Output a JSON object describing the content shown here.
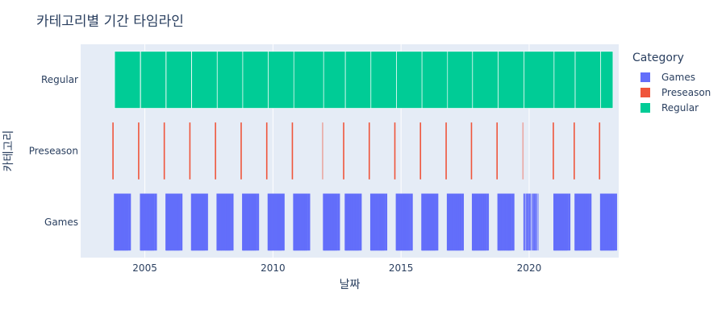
{
  "chart_data": {
    "type": "timeline",
    "title": "카테고리별 기간 타임라인",
    "xlabel": "날짜",
    "ylabel": "카테고리",
    "xlim": [
      "2002-07-01",
      "2023-07-01"
    ],
    "x_ticks": [
      "2005",
      "2010",
      "2015",
      "2020"
    ],
    "categories": [
      "Regular",
      "Preseason",
      "Games"
    ],
    "legend_title": "Category",
    "legend_position": "right",
    "grid": true,
    "series": [
      {
        "name": "Games",
        "color": "#636efa"
      },
      {
        "name": "Preseason",
        "color": "#ef553b"
      },
      {
        "name": "Regular",
        "color": "#00cc96"
      }
    ],
    "regular_periods": [
      [
        "2003-10-28",
        "2004-10-28"
      ],
      [
        "2004-11-02",
        "2005-10-28"
      ],
      [
        "2005-11-01",
        "2006-10-28"
      ],
      [
        "2006-10-31",
        "2007-10-28"
      ],
      [
        "2007-10-30",
        "2008-10-27"
      ],
      [
        "2008-10-28",
        "2009-10-26"
      ],
      [
        "2009-10-27",
        "2010-10-25"
      ],
      [
        "2010-10-26",
        "2011-12-24"
      ],
      [
        "2011-12-25",
        "2012-10-28"
      ],
      [
        "2012-10-30",
        "2013-10-27"
      ],
      [
        "2013-10-29",
        "2014-10-26"
      ],
      [
        "2014-10-28",
        "2015-10-26"
      ],
      [
        "2015-10-27",
        "2016-10-24"
      ],
      [
        "2016-10-25",
        "2017-10-15"
      ],
      [
        "2017-10-17",
        "2018-10-14"
      ],
      [
        "2018-10-16",
        "2019-10-20"
      ],
      [
        "2019-10-22",
        "2020-12-20"
      ],
      [
        "2020-12-22",
        "2021-10-17"
      ],
      [
        "2021-10-19",
        "2022-10-16"
      ],
      [
        "2022-10-18",
        "2023-04-10"
      ]
    ],
    "preseason_dates": [
      "2003-10-05",
      "2004-10-05",
      "2005-10-05",
      "2006-10-05",
      "2007-10-05",
      "2008-10-05",
      "2009-10-05",
      "2010-10-05",
      "2011-12-10",
      "2012-10-05",
      "2013-10-05",
      "2014-10-05",
      "2015-10-05",
      "2016-10-05",
      "2017-10-01",
      "2018-10-01",
      "2019-10-05",
      "2020-12-11",
      "2021-10-05",
      "2022-10-01"
    ],
    "games_day_offsets": [
      0,
      6,
      12,
      18,
      25,
      31,
      38,
      45,
      52,
      60,
      67,
      74,
      82,
      90,
      98,
      105,
      113,
      120,
      128,
      135,
      142,
      150,
      157,
      164,
      172,
      180,
      189,
      198,
      210,
      222
    ]
  }
}
